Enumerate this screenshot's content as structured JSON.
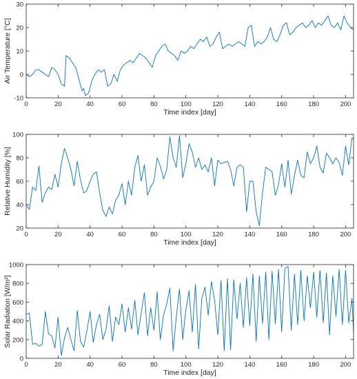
{
  "series_color": "#0072BD",
  "chart_data": [
    {
      "type": "line",
      "xlabel": "Time index [day]",
      "ylabel": "Air Temperature [°C]",
      "xlim": [
        0,
        205
      ],
      "ylim": [
        -10,
        30
      ],
      "xticks": [
        0,
        20,
        40,
        60,
        80,
        100,
        120,
        140,
        160,
        180,
        200
      ],
      "yticks": [
        -10,
        0,
        10,
        20,
        30
      ],
      "x": [
        0,
        2,
        4,
        6,
        8,
        10,
        12,
        14,
        16,
        18,
        20,
        22,
        24,
        25,
        27,
        29,
        31,
        33,
        35,
        36,
        37,
        39,
        41,
        43,
        45,
        47,
        49,
        51,
        53,
        55,
        57,
        59,
        61,
        63,
        65,
        67,
        69,
        71,
        73,
        75,
        77,
        79,
        81,
        83,
        85,
        87,
        89,
        91,
        93,
        95,
        97,
        99,
        101,
        103,
        105,
        107,
        109,
        111,
        113,
        115,
        117,
        119,
        121,
        123,
        125,
        127,
        129,
        131,
        133,
        135,
        137,
        139,
        141,
        143,
        145,
        147,
        149,
        151,
        153,
        155,
        157,
        159,
        161,
        163,
        165,
        167,
        169,
        171,
        173,
        175,
        177,
        179,
        181,
        183,
        185,
        187,
        189,
        191,
        193,
        195,
        197,
        199,
        201,
        203,
        205
      ],
      "series": [
        {
          "values": [
            0,
            -1,
            0,
            2,
            2,
            1,
            0,
            -1,
            3,
            2,
            0,
            -4,
            -5,
            8,
            7,
            5,
            3,
            -2,
            -7,
            -6,
            -9,
            -8,
            -3,
            0,
            2,
            1,
            2,
            -5,
            -4,
            0,
            -3,
            2,
            4,
            5,
            6,
            5,
            7,
            9,
            8,
            7,
            5,
            3,
            8,
            10,
            12,
            13,
            10,
            9,
            8,
            6,
            10,
            9,
            10,
            12,
            11,
            13,
            15,
            14,
            16,
            12,
            13,
            16,
            18,
            11,
            12,
            13,
            12,
            13,
            14,
            13,
            12,
            20,
            21,
            12,
            14,
            13,
            14,
            16,
            20,
            15,
            14,
            17,
            21,
            22,
            17,
            18,
            20,
            21,
            22,
            20,
            21,
            23,
            20,
            22,
            21,
            23,
            25,
            21,
            20,
            22,
            19,
            25,
            22,
            20,
            19
          ]
        }
      ]
    },
    {
      "type": "line",
      "xlabel": "Time index [day]",
      "ylabel": "Relative Humidity [%]",
      "xlim": [
        0,
        205
      ],
      "ylim": [
        20,
        100
      ],
      "xticks": [
        0,
        20,
        40,
        60,
        80,
        100,
        120,
        140,
        160,
        180,
        200
      ],
      "yticks": [
        20,
        40,
        60,
        80,
        100
      ],
      "x": [
        0,
        2,
        4,
        6,
        8,
        10,
        12,
        14,
        16,
        18,
        20,
        22,
        24,
        26,
        28,
        30,
        32,
        34,
        36,
        38,
        40,
        42,
        44,
        46,
        48,
        50,
        52,
        54,
        56,
        58,
        60,
        62,
        64,
        66,
        68,
        70,
        72,
        74,
        76,
        78,
        80,
        82,
        84,
        86,
        88,
        90,
        92,
        94,
        96,
        98,
        100,
        102,
        104,
        106,
        108,
        110,
        112,
        114,
        116,
        118,
        120,
        122,
        124,
        126,
        128,
        130,
        132,
        134,
        136,
        138,
        140,
        142,
        144,
        146,
        148,
        150,
        152,
        154,
        156,
        158,
        160,
        162,
        164,
        166,
        168,
        170,
        172,
        174,
        176,
        178,
        180,
        182,
        184,
        186,
        188,
        190,
        192,
        194,
        196,
        198,
        200,
        202,
        204,
        205
      ],
      "series": [
        {
          "values": [
            40,
            36,
            55,
            52,
            73,
            42,
            50,
            55,
            53,
            66,
            55,
            75,
            88,
            80,
            70,
            56,
            77,
            61,
            50,
            52,
            60,
            66,
            68,
            50,
            35,
            30,
            38,
            32,
            44,
            48,
            58,
            40,
            60,
            48,
            72,
            82,
            60,
            74,
            48,
            55,
            60,
            80,
            73,
            62,
            70,
            98,
            80,
            72,
            99,
            63,
            75,
            92,
            85,
            72,
            80,
            70,
            74,
            68,
            80,
            56,
            78,
            75,
            76,
            77,
            70,
            56,
            72,
            74,
            72,
            34,
            60,
            60,
            34,
            22,
            50,
            72,
            70,
            68,
            48,
            57,
            75,
            55,
            78,
            49,
            65,
            78,
            65,
            63,
            85,
            75,
            80,
            90,
            72,
            67,
            84,
            80,
            75,
            80,
            76,
            65,
            90,
            74,
            97,
            96
          ]
        }
      ]
    },
    {
      "type": "line",
      "xlabel": "Time index [day]",
      "ylabel": "Solar Radiation [W/m²]",
      "xlim": [
        0,
        205
      ],
      "ylim": [
        0,
        1000
      ],
      "xticks": [
        0,
        20,
        40,
        60,
        80,
        100,
        120,
        140,
        160,
        180,
        200
      ],
      "yticks": [
        0,
        200,
        400,
        600,
        800,
        1000
      ],
      "x": [
        0,
        2,
        4,
        6,
        8,
        10,
        12,
        14,
        16,
        18,
        20,
        22,
        24,
        26,
        28,
        30,
        32,
        34,
        36,
        38,
        40,
        42,
        44,
        46,
        48,
        50,
        52,
        54,
        56,
        58,
        60,
        62,
        64,
        66,
        68,
        70,
        72,
        74,
        76,
        78,
        80,
        82,
        84,
        86,
        88,
        90,
        92,
        94,
        96,
        98,
        100,
        102,
        104,
        106,
        108,
        110,
        112,
        114,
        116,
        118,
        120,
        122,
        124,
        126,
        128,
        130,
        132,
        134,
        136,
        138,
        140,
        142,
        144,
        146,
        148,
        150,
        152,
        154,
        156,
        158,
        160,
        162,
        164,
        166,
        168,
        170,
        172,
        174,
        176,
        178,
        180,
        182,
        184,
        186,
        188,
        190,
        192,
        194,
        196,
        198,
        200,
        202,
        204,
        205
      ],
      "series": [
        {
          "values": [
            470,
            480,
            150,
            160,
            130,
            150,
            500,
            260,
            240,
            110,
            440,
            30,
            220,
            330,
            200,
            80,
            510,
            180,
            120,
            290,
            500,
            170,
            360,
            470,
            200,
            310,
            560,
            180,
            440,
            360,
            580,
            280,
            540,
            310,
            620,
            250,
            480,
            700,
            240,
            540,
            300,
            710,
            200,
            460,
            580,
            750,
            80,
            440,
            740,
            200,
            520,
            720,
            280,
            790,
            100,
            640,
            760,
            460,
            820,
            620,
            250,
            830,
            80,
            850,
            90,
            840,
            420,
            800,
            330,
            860,
            350,
            900,
            180,
            880,
            370,
            920,
            200,
            930,
            370,
            950,
            280,
            960,
            980,
            300,
            900,
            360,
            940,
            400,
            880,
            540,
            920,
            440,
            940,
            380,
            910,
            250,
            880,
            450,
            950,
            360,
            940,
            380,
            640,
            270
          ]
        }
      ]
    }
  ]
}
